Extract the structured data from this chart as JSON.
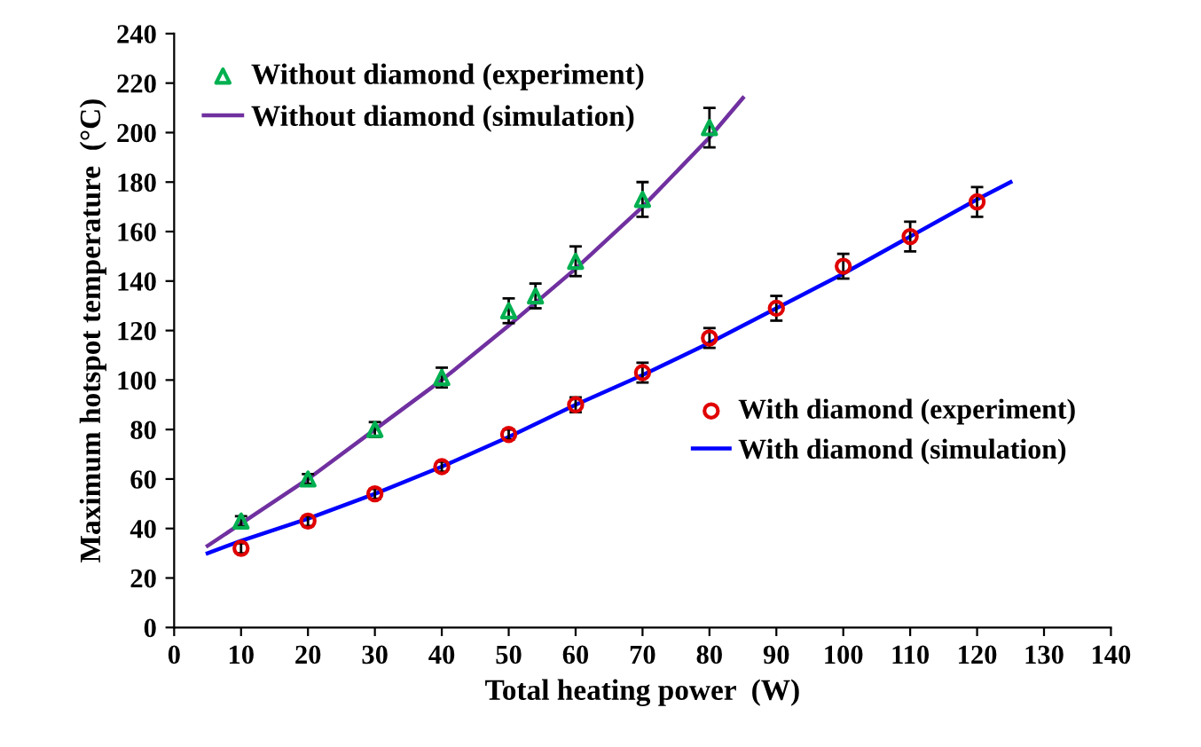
{
  "chart_data": {
    "type": "scatter",
    "xlabel": "Total heating power  (W)",
    "ylabel": "Maximum hotspot temperature  (°C)",
    "xlim": [
      0,
      140
    ],
    "xticks": [
      0,
      10,
      20,
      30,
      40,
      50,
      60,
      70,
      80,
      90,
      100,
      110,
      120,
      130,
      140
    ],
    "ylim": [
      0,
      240
    ],
    "yticks": [
      0,
      20,
      40,
      60,
      80,
      100,
      120,
      140,
      160,
      180,
      200,
      220,
      240
    ],
    "grid": false,
    "legend": "top left",
    "series": [
      {
        "name": "Without diamond (experiment)",
        "marker": "triangle",
        "color": "#00b050",
        "x": [
          10,
          20,
          30,
          40,
          50,
          54,
          60,
          70,
          80
        ],
        "values": [
          43,
          60,
          80,
          101,
          128,
          134,
          148,
          173,
          202
        ],
        "errors": [
          2,
          2,
          3,
          4,
          5,
          5,
          6,
          7,
          8
        ]
      },
      {
        "name": "Without diamond (simulation)",
        "type": "line",
        "marker": "none",
        "color": "#7030a0",
        "x": [
          5,
          10,
          20,
          30,
          40,
          50,
          60,
          70,
          80,
          85
        ],
        "values": [
          33,
          42,
          60,
          80,
          100,
          122,
          145,
          170,
          198,
          214
        ]
      },
      {
        "name": "With diamond (experiment)",
        "marker": "circle",
        "color": "#e00000",
        "x": [
          10,
          20,
          30,
          40,
          50,
          60,
          70,
          80,
          90,
          100,
          110,
          120
        ],
        "values": [
          32,
          43,
          54,
          65,
          78,
          90,
          103,
          117,
          129,
          146,
          158,
          172
        ],
        "errors": [
          2,
          2,
          2,
          2,
          2,
          3,
          4,
          4,
          5,
          5,
          6,
          6
        ]
      },
      {
        "name": "With diamond (simulation)",
        "type": "line",
        "marker": "none",
        "color": "#0000ff",
        "x": [
          5,
          10,
          20,
          30,
          40,
          50,
          60,
          70,
          80,
          90,
          100,
          110,
          120,
          125
        ],
        "values": [
          30,
          35,
          44,
          54,
          65,
          77,
          90,
          102,
          115,
          129,
          143,
          158,
          173,
          180
        ]
      }
    ]
  }
}
